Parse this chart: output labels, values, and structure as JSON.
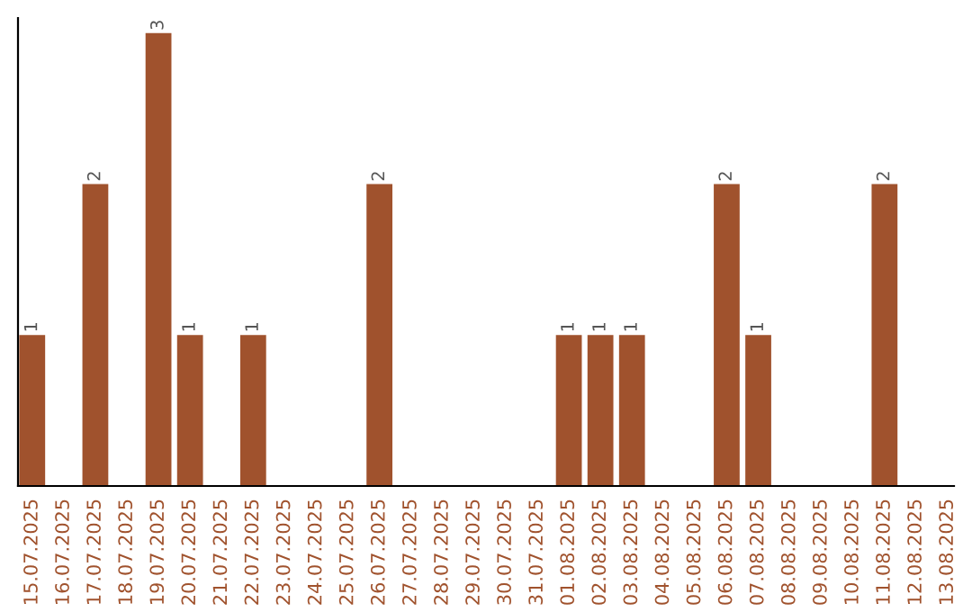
{
  "chart_data": {
    "type": "bar",
    "categories": [
      "15.07.2025",
      "16.07.2025",
      "17.07.2025",
      "18.07.2025",
      "19.07.2025",
      "20.07.2025",
      "21.07.2025",
      "22.07.2025",
      "23.07.2025",
      "24.07.2025",
      "25.07.2025",
      "26.07.2025",
      "27.07.2025",
      "28.07.2025",
      "29.07.2025",
      "30.07.2025",
      "31.07.2025",
      "01.08.2025",
      "02.08.2025",
      "03.08.2025",
      "04.08.2025",
      "05.08.2025",
      "06.08.2025",
      "07.08.2025",
      "08.08.2025",
      "09.08.2025",
      "10.08.2025",
      "11.08.2025",
      "12.08.2025",
      "13.08.2025"
    ],
    "values": [
      1,
      0,
      2,
      0,
      3,
      1,
      0,
      1,
      0,
      0,
      0,
      2,
      0,
      0,
      0,
      0,
      0,
      1,
      1,
      1,
      0,
      0,
      2,
      1,
      0,
      0,
      0,
      2,
      0,
      0
    ],
    "value_labels": [
      "1",
      null,
      "2",
      null,
      "3",
      "1",
      null,
      "1",
      null,
      null,
      null,
      "2",
      null,
      null,
      null,
      null,
      null,
      "1",
      "1",
      "1",
      null,
      null,
      "2",
      "1",
      null,
      null,
      null,
      "2",
      null,
      null
    ],
    "color": "#a0522d",
    "ylim": [
      0,
      3.1
    ],
    "tick_labels": "x",
    "grid": false
  }
}
